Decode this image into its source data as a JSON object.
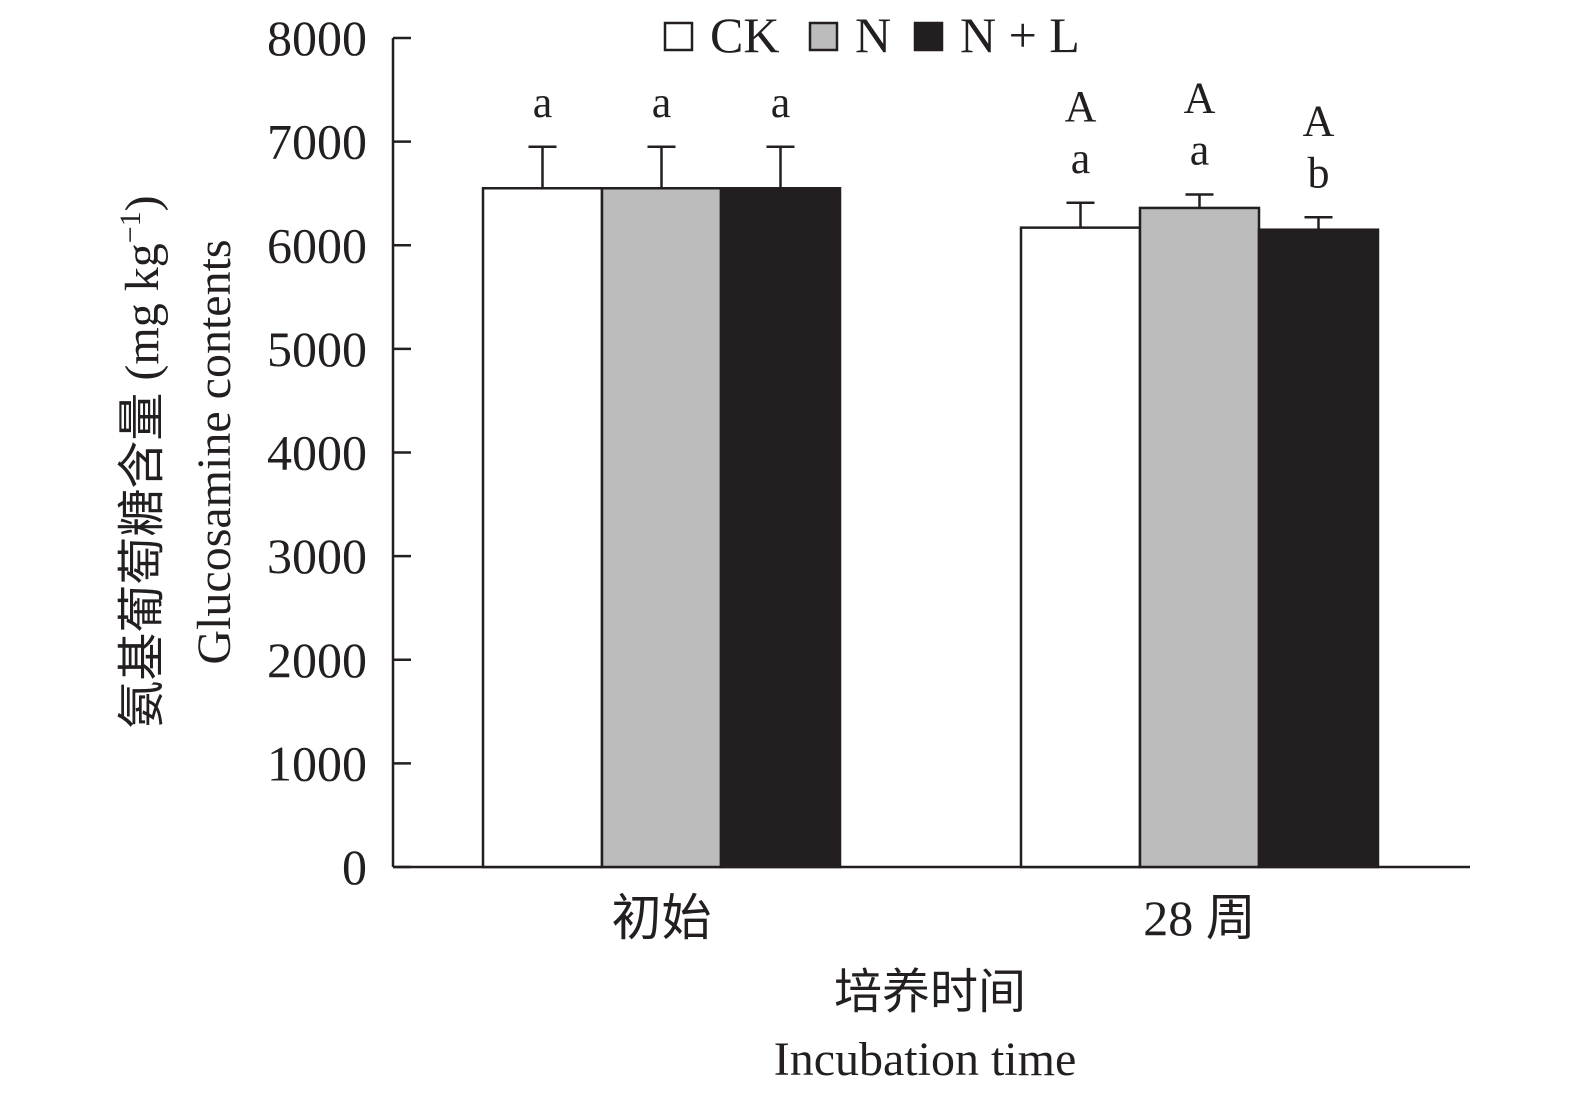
{
  "chart_data": {
    "type": "bar",
    "categories": [
      "初始",
      "28 周"
    ],
    "series": [
      {
        "name": "CK",
        "color": "#ffffff",
        "values": [
          6550,
          6170
        ],
        "errors": [
          400,
          240
        ],
        "upper_letters": [
          "",
          "A"
        ],
        "lower_letters": [
          "a",
          "a"
        ]
      },
      {
        "name": "N",
        "color": "#bcbcbc",
        "values": [
          6550,
          6360
        ],
        "errors": [
          400,
          130
        ],
        "upper_letters": [
          "",
          "A"
        ],
        "lower_letters": [
          "a",
          "a"
        ]
      },
      {
        "name": "N + L",
        "color": "#231f20",
        "values": [
          6550,
          6150
        ],
        "errors": [
          400,
          120
        ],
        "upper_letters": [
          "",
          "A"
        ],
        "lower_letters": [
          "a",
          "b"
        ]
      }
    ],
    "yticks": [
      "0",
      "1000",
      "2000",
      "3000",
      "4000",
      "5000",
      "6000",
      "7000",
      "8000"
    ],
    "ylim": [
      0,
      8000
    ],
    "ylabel_cn": "氨基葡萄糖含量 (mg kg",
    "ylabel_sup": "−1",
    "ylabel_close": ")",
    "ylabel_en": "Glucosamine contents",
    "xlabel_cn": "培养时间",
    "xlabel_en": "Incubation time",
    "legend_position": "top-center",
    "grid": false
  }
}
